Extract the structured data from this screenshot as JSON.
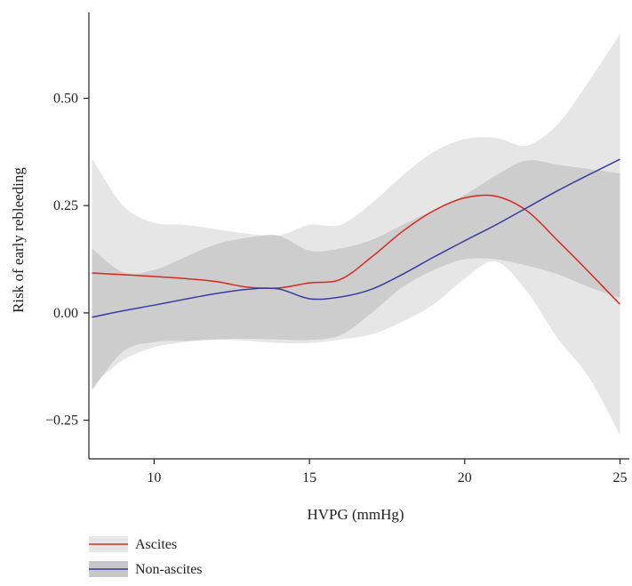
{
  "chart_data": {
    "type": "line",
    "xlabel": "HVPG (mmHg)",
    "ylabel": "Risk of early rebleeding",
    "xlim": [
      7.9,
      25.3
    ],
    "ylim": [
      -0.34,
      0.7
    ],
    "x_ticks": [
      10,
      15,
      20,
      25
    ],
    "x_tick_labels": [
      "10",
      "15",
      "20",
      "25"
    ],
    "y_ticks": [
      -0.25,
      0,
      0.25,
      0.5
    ],
    "y_tick_labels": [
      "−0.25",
      "0.00",
      "0.25",
      "0.50"
    ],
    "grid": false,
    "legend_position": "bottom-left",
    "series": [
      {
        "name": "Ascites",
        "color": "#d62a20",
        "band_color": "#e6e6e6",
        "x": [
          8,
          9,
          10,
          11,
          12,
          13,
          14,
          15,
          16,
          17,
          18,
          19,
          20,
          21,
          22,
          23,
          24,
          25
        ],
        "y": [
          0.093,
          0.089,
          0.085,
          0.08,
          0.073,
          0.06,
          0.058,
          0.07,
          0.078,
          0.13,
          0.19,
          0.238,
          0.268,
          0.272,
          0.238,
          0.168,
          0.095,
          0.02
        ],
        "lower": [
          -0.17,
          -0.11,
          -0.08,
          -0.068,
          -0.062,
          -0.065,
          -0.07,
          -0.07,
          -0.062,
          -0.05,
          -0.02,
          0.02,
          0.08,
          0.12,
          0.05,
          -0.06,
          -0.15,
          -0.285
        ],
        "upper": [
          0.36,
          0.25,
          0.21,
          0.205,
          0.195,
          0.185,
          0.18,
          0.205,
          0.205,
          0.255,
          0.32,
          0.375,
          0.405,
          0.408,
          0.39,
          0.44,
          0.54,
          0.65
        ]
      },
      {
        "name": "Non-ascites",
        "color": "#3a3aa6",
        "band_color": "#c8c8c8",
        "x": [
          8,
          9,
          10,
          11,
          12,
          13,
          14,
          15,
          16,
          17,
          18,
          19,
          20,
          21,
          22,
          23,
          24,
          25
        ],
        "y": [
          -0.01,
          0.005,
          0.018,
          0.032,
          0.045,
          0.055,
          0.056,
          0.033,
          0.037,
          0.055,
          0.09,
          0.13,
          0.168,
          0.205,
          0.245,
          0.285,
          0.322,
          0.358
        ],
        "lower": [
          -0.18,
          -0.09,
          -0.068,
          -0.065,
          -0.062,
          -0.06,
          -0.062,
          -0.063,
          -0.052,
          0.0,
          0.06,
          0.1,
          0.125,
          0.125,
          0.11,
          0.09,
          0.06,
          0.035
        ],
        "upper": [
          0.15,
          0.095,
          0.1,
          0.13,
          0.16,
          0.175,
          0.18,
          0.145,
          0.15,
          0.17,
          0.205,
          0.24,
          0.275,
          0.32,
          0.355,
          0.345,
          0.335,
          0.325
        ]
      }
    ]
  }
}
